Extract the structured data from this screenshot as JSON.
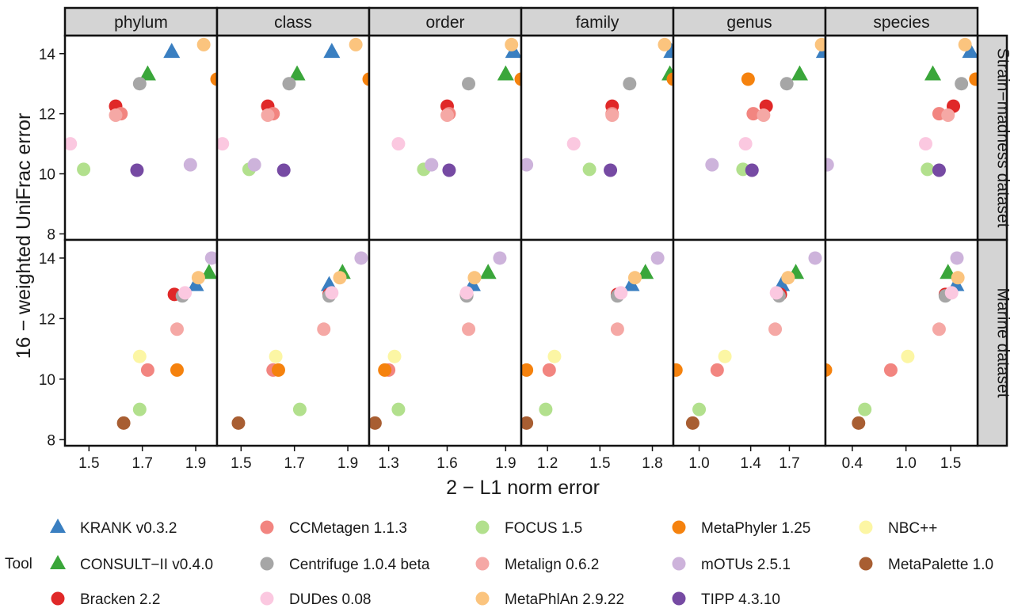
{
  "chart_data": {
    "type": "scatter",
    "title": "",
    "xlabel": "2 − L1 norm error",
    "ylabel": "16 − weighted UniFrac error",
    "columns": [
      "phylum",
      "class",
      "order",
      "family",
      "genus",
      "species"
    ],
    "rows": [
      "Strain−madness dataset",
      "Marine dataset"
    ],
    "ylim": [
      7.8,
      14.6
    ],
    "y_ticks": [
      8,
      10,
      12,
      14
    ],
    "panel_x": [
      {
        "xlim": [
          1.41,
          1.98
        ],
        "ticks": [
          "1.5",
          "1.7",
          "1.9"
        ],
        "tick_values": [
          1.5,
          1.7,
          1.9
        ]
      },
      {
        "xlim": [
          1.41,
          1.98
        ],
        "ticks": [
          "1.5",
          "1.7",
          "1.9"
        ],
        "tick_values": [
          1.5,
          1.7,
          1.9
        ]
      },
      {
        "xlim": [
          1.2,
          1.98
        ],
        "ticks": [
          "1.3",
          "1.6",
          "1.9"
        ],
        "tick_values": [
          1.3,
          1.6,
          1.9
        ]
      },
      {
        "xlim": [
          1.05,
          1.92
        ],
        "ticks": [
          "1.2",
          "1.5",
          "1.8"
        ],
        "tick_values": [
          1.2,
          1.5,
          1.8
        ]
      },
      {
        "xlim": [
          0.8,
          1.98
        ],
        "ticks": [
          "1.0",
          "1.4",
          "1.7"
        ],
        "tick_values": [
          1.0,
          1.4,
          1.7
        ]
      },
      {
        "xlim": [
          0.1,
          1.8
        ],
        "ticks": [
          "0.4",
          "1.0",
          "1.5"
        ],
        "tick_values": [
          0.4,
          1.0,
          1.5
        ]
      }
    ],
    "legend": {
      "title": "Tool",
      "position": "bottom",
      "columns": 5
    },
    "series": [
      {
        "name": "KRANK v0.3.2",
        "color": "#3a7fc1",
        "shape": "triangle",
        "points": {
          "Strain−madness dataset": [
            [
              1.81,
              14.05
            ],
            [
              1.84,
              14.05
            ],
            [
              1.94,
              14.05
            ],
            [
              1.91,
              14.05
            ],
            [
              1.97,
              14.05
            ],
            [
              1.72,
              14.05
            ]
          ],
          "Marine dataset": [
            [
              1.9,
              13.1
            ],
            [
              1.83,
              13.1
            ],
            [
              1.73,
              13.1
            ],
            [
              1.68,
              13.1
            ],
            [
              1.64,
              13.1
            ],
            [
              1.56,
              13.1
            ]
          ]
        }
      },
      {
        "name": "CONSULT−II v0.4.0",
        "color": "#3aa63a",
        "shape": "triangle",
        "points": {
          "Strain−madness dataset": [
            [
              1.72,
              13.3
            ],
            [
              1.71,
              13.3
            ],
            [
              1.9,
              13.3
            ],
            [
              1.9,
              13.3
            ],
            [
              1.78,
              13.3
            ],
            [
              1.3,
              13.3
            ]
          ],
          "Marine dataset": [
            [
              1.95,
              13.5
            ],
            [
              1.88,
              13.5
            ],
            [
              1.81,
              13.5
            ],
            [
              1.76,
              13.5
            ],
            [
              1.75,
              13.5
            ],
            [
              1.47,
              13.5
            ]
          ]
        }
      },
      {
        "name": "Bracken 2.2",
        "color": "#e02828",
        "shape": "circle",
        "points": {
          "Strain−madness dataset": [
            [
              1.6,
              12.25
            ],
            [
              1.6,
              12.25
            ],
            [
              1.6,
              12.25
            ],
            [
              1.57,
              12.25
            ],
            [
              1.52,
              12.25
            ],
            [
              1.53,
              12.25
            ]
          ],
          "Marine dataset": [
            [
              1.82,
              12.8
            ],
            [
              1.83,
              12.8
            ],
            [
              1.7,
              12.8
            ],
            [
              1.6,
              12.8
            ],
            [
              1.63,
              12.8
            ],
            [
              1.44,
              12.8
            ]
          ]
        }
      },
      {
        "name": "CCMetagen 1.1.3",
        "color": "#f28580",
        "shape": "circle",
        "points": {
          "Strain−madness dataset": [
            [
              1.62,
              12.0
            ],
            [
              1.62,
              12.0
            ],
            [
              1.61,
              12.0
            ],
            [
              1.57,
              12.0
            ],
            [
              1.42,
              12.0
            ],
            [
              1.37,
              12.0
            ]
          ],
          "Marine dataset": [
            [
              1.72,
              10.3
            ],
            [
              1.62,
              10.3
            ],
            [
              1.3,
              10.3
            ],
            [
              1.21,
              10.3
            ],
            [
              1.14,
              10.3
            ],
            [
              0.83,
              10.3
            ]
          ]
        }
      },
      {
        "name": "Centrifuge 1.0.4 beta",
        "color": "#a6a6a6",
        "shape": "circle",
        "points": {
          "Strain−madness dataset": [
            [
              1.69,
              13.0
            ],
            [
              1.68,
              13.0
            ],
            [
              1.71,
              13.0
            ],
            [
              1.67,
              13.0
            ],
            [
              1.68,
              13.0
            ],
            [
              1.62,
              13.0
            ]
          ],
          "Marine dataset": [
            [
              1.85,
              12.75
            ],
            [
              1.83,
              12.75
            ],
            [
              1.7,
              12.75
            ],
            [
              1.6,
              12.75
            ],
            [
              1.62,
              12.75
            ],
            [
              1.44,
              12.75
            ]
          ]
        }
      },
      {
        "name": "DUDes 0.08",
        "color": "#fbc8e0",
        "shape": "circle",
        "points": {
          "Strain−madness dataset": [
            [
              1.43,
              11.0
            ],
            [
              1.43,
              11.0
            ],
            [
              1.35,
              11.0
            ],
            [
              1.35,
              11.0
            ],
            [
              1.36,
              11.0
            ],
            [
              1.22,
              11.0
            ]
          ],
          "Marine dataset": [
            [
              1.86,
              12.85
            ],
            [
              1.84,
              12.85
            ],
            [
              1.7,
              12.85
            ],
            [
              1.62,
              12.85
            ],
            [
              1.6,
              12.85
            ],
            [
              1.51,
              12.85
            ]
          ]
        }
      },
      {
        "name": "FOCUS 1.5",
        "color": "#b2e08d",
        "shape": "circle",
        "points": {
          "Strain−madness dataset": [
            [
              1.48,
              10.15
            ],
            [
              1.53,
              10.15
            ],
            [
              1.48,
              10.15
            ],
            [
              1.44,
              10.15
            ],
            [
              1.34,
              10.15
            ],
            [
              1.24,
              10.15
            ]
          ],
          "Marine dataset": [
            [
              1.69,
              9.0
            ],
            [
              1.72,
              9.0
            ],
            [
              1.35,
              9.0
            ],
            [
              1.19,
              9.0
            ],
            [
              1.0,
              9.0
            ],
            [
              0.54,
              9.0
            ]
          ]
        }
      },
      {
        "name": "Metalign 0.6.2",
        "color": "#f5a8a5",
        "shape": "circle",
        "points": {
          "Strain−madness dataset": [
            [
              1.6,
              11.95
            ],
            [
              1.6,
              11.95
            ],
            [
              1.6,
              11.95
            ],
            [
              1.57,
              11.95
            ],
            [
              1.5,
              11.95
            ],
            [
              1.47,
              11.95
            ]
          ],
          "Marine dataset": [
            [
              1.83,
              11.65
            ],
            [
              1.81,
              11.65
            ],
            [
              1.71,
              11.65
            ],
            [
              1.6,
              11.65
            ],
            [
              1.59,
              11.65
            ],
            [
              1.37,
              11.65
            ]
          ]
        }
      },
      {
        "name": "MetaPhlAn 2.9.22",
        "color": "#fbc47e",
        "shape": "circle",
        "points": {
          "Strain−madness dataset": [
            [
              1.93,
              14.3
            ],
            [
              1.93,
              14.3
            ],
            [
              1.93,
              14.3
            ],
            [
              1.87,
              14.3
            ],
            [
              1.95,
              14.3
            ],
            [
              1.66,
              14.3
            ]
          ],
          "Marine dataset": [
            [
              1.91,
              13.35
            ],
            [
              1.87,
              13.35
            ],
            [
              1.74,
              13.35
            ],
            [
              1.7,
              13.35
            ],
            [
              1.69,
              13.35
            ],
            [
              1.58,
              13.35
            ]
          ]
        }
      },
      {
        "name": "MetaPhyler 1.25",
        "color": "#f5820e",
        "shape": "circle",
        "points": {
          "Strain−madness dataset": [
            [
              1.98,
              13.15
            ],
            [
              1.98,
              13.15
            ],
            [
              1.98,
              13.15
            ],
            [
              1.92,
              13.15
            ],
            [
              1.38,
              13.15
            ],
            [
              1.78,
              13.15
            ]
          ],
          "Marine dataset": [
            [
              1.83,
              10.3
            ],
            [
              1.64,
              10.3
            ],
            [
              1.28,
              10.3
            ],
            [
              1.08,
              10.3
            ],
            [
              0.82,
              10.3
            ],
            [
              0.1,
              10.3
            ]
          ]
        }
      },
      {
        "name": "mOTUs 2.5.1",
        "color": "#cdb3db",
        "shape": "circle",
        "points": {
          "Strain−madness dataset": [
            [
              1.88,
              10.3
            ],
            [
              1.55,
              10.3
            ],
            [
              1.52,
              10.3
            ],
            [
              1.08,
              10.3
            ],
            [
              1.1,
              10.3
            ],
            [
              0.12,
              10.3
            ]
          ],
          "Marine dataset": [
            [
              1.96,
              14.0
            ],
            [
              1.95,
              14.0
            ],
            [
              1.87,
              14.0
            ],
            [
              1.83,
              14.0
            ],
            [
              1.9,
              14.0
            ],
            [
              1.57,
              14.0
            ]
          ]
        }
      },
      {
        "name": "NBC++",
        "color": "#fcf6a4",
        "shape": "circle",
        "points": {
          "Strain−madness dataset": [],
          "Marine dataset": [
            [
              1.69,
              10.75
            ],
            [
              1.63,
              10.75
            ],
            [
              1.33,
              10.75
            ],
            [
              1.24,
              10.75
            ],
            [
              1.2,
              10.75
            ],
            [
              1.02,
              10.75
            ]
          ]
        }
      },
      {
        "name": "TIPP 4.3.10",
        "color": "#764aa3",
        "shape": "circle",
        "points": {
          "Strain−madness dataset": [
            [
              1.68,
              10.12
            ],
            [
              1.66,
              10.12
            ],
            [
              1.61,
              10.12
            ],
            [
              1.56,
              10.12
            ],
            [
              1.41,
              10.12
            ],
            [
              1.37,
              10.12
            ]
          ],
          "Marine dataset": []
        }
      },
      {
        "name": "MetaPalette 1.0",
        "color": "#a85e32",
        "shape": "circle",
        "points": {
          "Strain−madness dataset": [],
          "Marine dataset": [
            [
              1.63,
              8.55
            ],
            [
              1.49,
              8.55
            ],
            [
              1.23,
              8.55
            ],
            [
              1.08,
              8.55
            ],
            [
              0.95,
              8.55
            ],
            [
              0.47,
              8.55
            ]
          ]
        }
      }
    ],
    "legend_order": [
      "KRANK v0.3.2",
      "CCMetagen 1.1.3",
      "FOCUS 1.5",
      "MetaPhyler 1.25",
      "NBC++",
      "CONSULT−II v0.4.0",
      "Centrifuge 1.0.4 beta",
      "Metalign 0.6.2",
      "mOTUs 2.5.1",
      "MetaPalette 1.0",
      "Bracken 2.2",
      "DUDes 0.08",
      "MetaPhlAn 2.9.22",
      "TIPP 4.3.10"
    ]
  }
}
